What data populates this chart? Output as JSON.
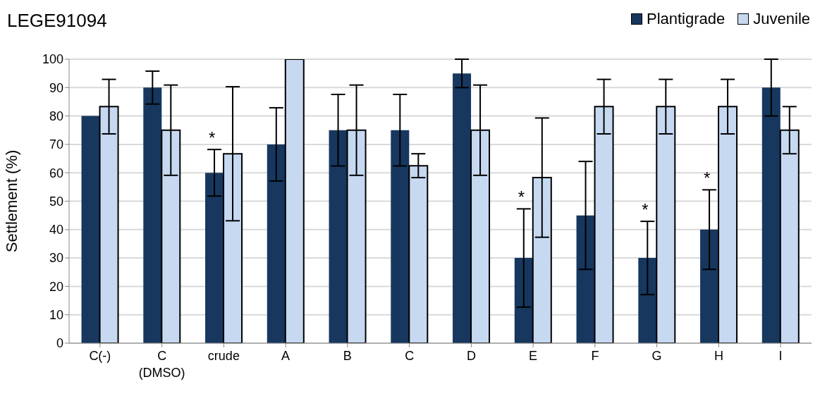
{
  "chart_data": {
    "type": "bar",
    "title": "LEGE91094",
    "ylabel": "Settlement (%)",
    "categories": [
      "C(-)",
      "C (DMSO)",
      "crude",
      "A",
      "B",
      "C",
      "D",
      "E",
      "F",
      "G",
      "H",
      "I"
    ],
    "series": [
      {
        "name": "Plantigrade",
        "color": "#17375e",
        "values": [
          80,
          90,
          60,
          70,
          75,
          75,
          95,
          30,
          45,
          30,
          40,
          90
        ],
        "errors": [
          0,
          5.8,
          8.2,
          12.9,
          12.6,
          12.6,
          5,
          17.3,
          19,
          12.9,
          14,
          10
        ]
      },
      {
        "name": "Juvenile",
        "color": "#c6d9f1",
        "values": [
          83.3,
          75,
          66.7,
          100,
          75,
          62.5,
          75,
          58.3,
          83.3,
          83.3,
          83.3,
          75
        ],
        "errors": [
          9.6,
          15.9,
          23.6,
          0,
          15.9,
          4.2,
          15.9,
          21,
          9.6,
          9.6,
          9.6,
          8.3
        ]
      }
    ],
    "ylim": [
      0,
      100
    ],
    "yticks": [
      0,
      10,
      20,
      30,
      40,
      50,
      60,
      70,
      80,
      90,
      100
    ],
    "grid": "y",
    "legend": "top right",
    "annotations": [
      {
        "text": "*",
        "x": "crude",
        "y": 68.2
      },
      {
        "text": "*",
        "x": "E",
        "y": 47.3
      },
      {
        "text": "*",
        "x": "G",
        "y": 42.9
      },
      {
        "text": "*",
        "x": "H",
        "y": 54
      }
    ]
  }
}
